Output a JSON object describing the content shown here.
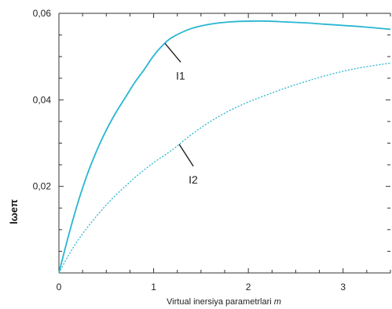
{
  "chart_data": {
    "type": "line",
    "title": "",
    "xlabel": "Virtual inersiya parametrlari",
    "xlabel_var": "m",
    "ylabel": "lωeπ",
    "xlim": [
      0,
      3.5
    ],
    "ylim": [
      0,
      0.06
    ],
    "xticks": [
      0,
      1,
      2,
      3
    ],
    "xtick_labels": [
      "0",
      "1",
      "2",
      "3"
    ],
    "yticks": [
      0.02,
      0.04,
      0.06
    ],
    "ytick_labels": [
      "0,02",
      "0,04",
      "0,06"
    ],
    "grid": false,
    "series": [
      {
        "name": "I1",
        "style": "solid",
        "color": "#29b6d2",
        "x": [
          0,
          0.1,
          0.2,
          0.3,
          0.4,
          0.5,
          0.6,
          0.7,
          0.8,
          0.9,
          1.0,
          1.1,
          1.2,
          1.4,
          1.6,
          1.8,
          2.0,
          2.2,
          2.4,
          2.6,
          2.8,
          3.0,
          3.2,
          3.5
        ],
        "y": [
          0,
          0.0085,
          0.0162,
          0.0228,
          0.0283,
          0.033,
          0.037,
          0.0405,
          0.044,
          0.047,
          0.0502,
          0.0527,
          0.0545,
          0.0565,
          0.0575,
          0.058,
          0.0582,
          0.0582,
          0.058,
          0.0578,
          0.0575,
          0.0572,
          0.0569,
          0.0563
        ]
      },
      {
        "name": "I2",
        "style": "dotted",
        "color": "#29b6d2",
        "x": [
          0,
          0.1,
          0.2,
          0.3,
          0.4,
          0.5,
          0.6,
          0.7,
          0.8,
          0.9,
          1.0,
          1.2,
          1.4,
          1.6,
          1.8,
          2.0,
          2.2,
          2.4,
          2.6,
          2.8,
          3.0,
          3.2,
          3.5
        ],
        "y": [
          0,
          0.004,
          0.0075,
          0.0105,
          0.0132,
          0.0157,
          0.018,
          0.02,
          0.022,
          0.0238,
          0.0255,
          0.0285,
          0.032,
          0.035,
          0.0375,
          0.0395,
          0.0412,
          0.0428,
          0.0442,
          0.0455,
          0.0466,
          0.0475,
          0.0485
        ]
      }
    ],
    "annotations": [
      {
        "text": "I1",
        "series": "I1",
        "point_x": 1.12
      },
      {
        "text": "I2",
        "series": "I2",
        "point_x": 1.27
      }
    ]
  }
}
